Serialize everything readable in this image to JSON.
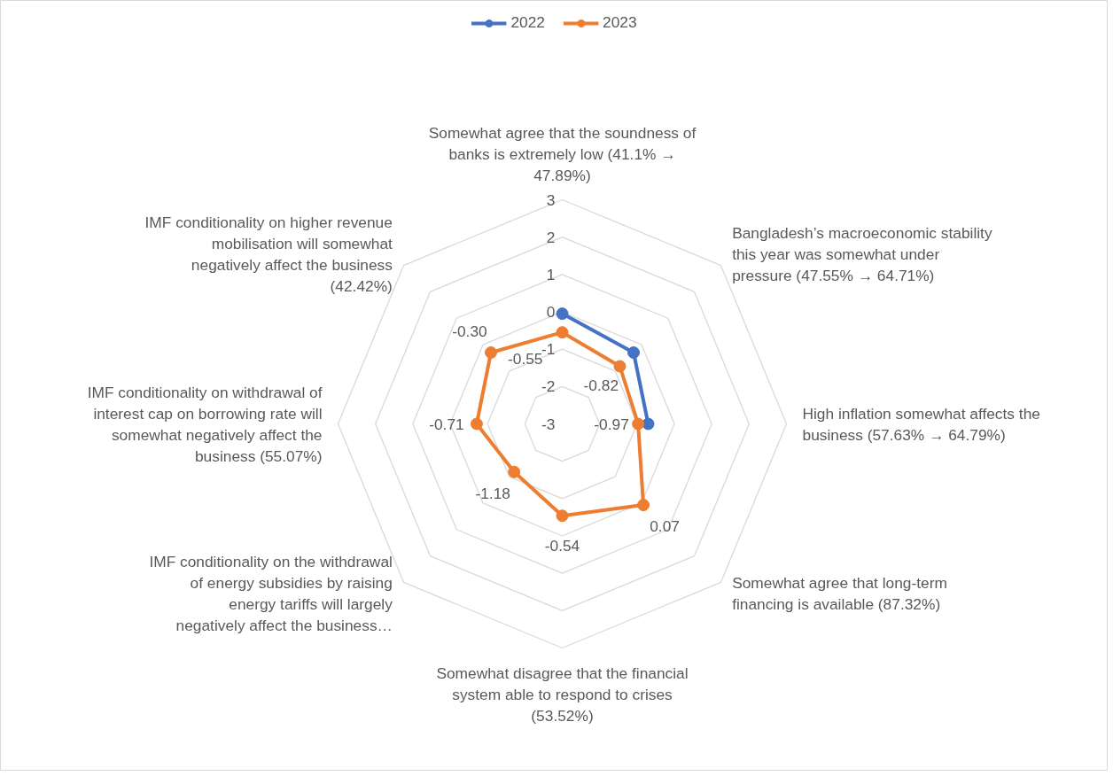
{
  "chart_data": {
    "type": "radar",
    "categories": [
      "Somewhat agree that the soundness of banks is extremely low (41.1% → 47.89%)",
      "Bangladesh’s macroeconomic stability this year was somewhat under pressure (47.55% → 64.71%)",
      "High inflation somewhat affects the business (57.63% → 64.79%)",
      "Somewhat agree that long-term financing is available (87.32%)",
      "Somewhat disagree that the financial system able to respond to crises (53.52%)",
      "IMF conditionality on the withdrawal of energy subsidies by raising energy tariffs will largely negatively affect the business…",
      "IMF conditionality on withdrawal of interest cap on borrowing rate will somewhat negatively affect the business (55.07%)",
      "IMF conditionality on higher revenue mobilisation will somewhat negatively affect the business (42.42%)"
    ],
    "ylim": [
      -3,
      3
    ],
    "yticks": [
      -3,
      -2,
      -1,
      0,
      1,
      2,
      3
    ],
    "grid": true,
    "legend": "top",
    "marker": "circle",
    "series": [
      {
        "name": "2022",
        "color": "#4472c4",
        "values": [
          -0.05,
          -0.3,
          -0.7,
          null,
          null,
          null,
          null,
          null
        ]
      },
      {
        "name": "2023",
        "color": "#ed7d31",
        "values": [
          -0.55,
          -0.82,
          -0.97,
          0.07,
          -0.54,
          -1.18,
          -0.71,
          -0.3
        ],
        "value_labels": [
          "-0.55",
          "-0.82",
          "-0.97",
          "0.07",
          "-0.54",
          "-1.18",
          "-0.71",
          "-0.30"
        ]
      }
    ]
  }
}
